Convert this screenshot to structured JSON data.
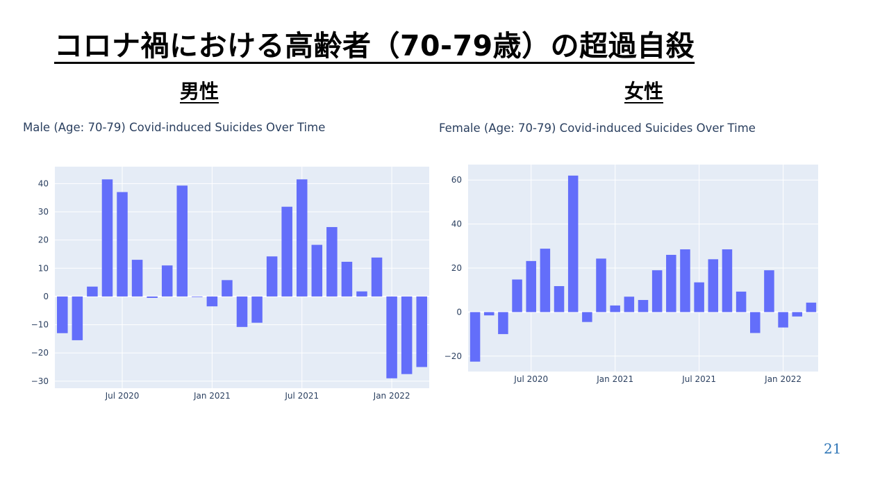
{
  "slide": {
    "title": "コロナ禍における高齢者（70-79歳）の超過自殺",
    "male_heading": "男性",
    "female_heading": "女性",
    "page_number": "21"
  },
  "chart_data": [
    {
      "type": "bar",
      "title": "Male (Age: 70-79) Covid-induced Suicides Over Time",
      "x": [
        "2020-03",
        "2020-04",
        "2020-05",
        "2020-06",
        "2020-07",
        "2020-08",
        "2020-09",
        "2020-10",
        "2020-11",
        "2020-12",
        "2021-01",
        "2021-02",
        "2021-03",
        "2021-04",
        "2021-05",
        "2021-06",
        "2021-07",
        "2021-08",
        "2021-09",
        "2021-10",
        "2021-11",
        "2021-12",
        "2022-01",
        "2022-02",
        "2022-03"
      ],
      "values": [
        -13,
        -15.5,
        3.5,
        41.5,
        37,
        13,
        -0.5,
        11,
        39.3,
        -0.2,
        -3.5,
        5.8,
        -10.8,
        -9.3,
        14.2,
        31.8,
        41.5,
        18.3,
        24.6,
        12.3,
        1.8,
        13.8,
        -29,
        -27.5,
        -25
      ],
      "ylim": [
        -32.5,
        46
      ],
      "yticks": [
        -30,
        -20,
        -10,
        0,
        10,
        20,
        30,
        40
      ],
      "ytick_labels": [
        "−30",
        "−20",
        "−10",
        "0",
        "10",
        "20",
        "30",
        "40"
      ],
      "xticks": [
        {
          "date": "2020-07",
          "label": "Jul 2020"
        },
        {
          "date": "2021-01",
          "label": "Jan 2021"
        },
        {
          "date": "2021-07",
          "label": "Jul 2021"
        },
        {
          "date": "2022-01",
          "label": "Jan 2022"
        }
      ],
      "xlabel": "",
      "ylabel": "",
      "bar_color": "#636efa",
      "plot_bgcolor": "#e5ecf6",
      "grid": true
    },
    {
      "type": "bar",
      "title": "Female (Age: 70-79) Covid-induced Suicides Over Time",
      "x": [
        "2020-03",
        "2020-04",
        "2020-05",
        "2020-06",
        "2020-07",
        "2020-08",
        "2020-09",
        "2020-10",
        "2020-11",
        "2020-12",
        "2021-01",
        "2021-02",
        "2021-03",
        "2021-04",
        "2021-05",
        "2021-06",
        "2021-07",
        "2021-08",
        "2021-09",
        "2021-10",
        "2021-11",
        "2021-12",
        "2022-01",
        "2022-02",
        "2022-03"
      ],
      "values": [
        -22.5,
        -1.5,
        -10,
        14.8,
        23.2,
        28.8,
        11.8,
        62,
        -4.5,
        24.3,
        3,
        7,
        5.5,
        19,
        26,
        28.5,
        13.5,
        24,
        28.5,
        9.3,
        -9.5,
        19,
        -7,
        -2,
        4.3
      ],
      "ylim": [
        -27,
        67
      ],
      "yticks": [
        -20,
        0,
        20,
        40,
        60
      ],
      "ytick_labels": [
        "−20",
        "0",
        "20",
        "40",
        "60"
      ],
      "xticks": [
        {
          "date": "2020-07",
          "label": "Jul 2020"
        },
        {
          "date": "2021-01",
          "label": "Jan 2021"
        },
        {
          "date": "2021-07",
          "label": "Jul 2021"
        },
        {
          "date": "2022-01",
          "label": "Jan 2022"
        }
      ],
      "xlabel": "",
      "ylabel": "",
      "bar_color": "#636efa",
      "plot_bgcolor": "#e5ecf6",
      "grid": true
    }
  ]
}
